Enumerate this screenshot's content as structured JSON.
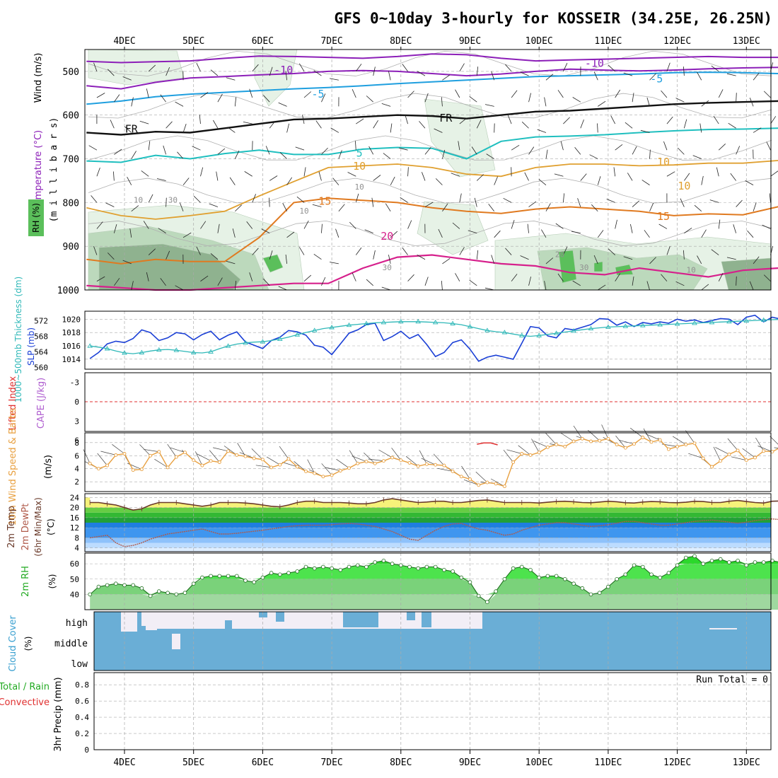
{
  "title": "GFS 0~10day 3-hourly for KOSSEIR (34.25E, 26.25N)",
  "days": [
    "4DEC",
    "5DEC",
    "6DEC",
    "7DEC",
    "8DEC",
    "9DEC",
    "10DEC",
    "11DEC",
    "12DEC",
    "13DEC"
  ],
  "colors": {
    "rh_light": "#e6f2e6",
    "rh_mid": "#bcd9bc",
    "rh_dark": "#8fb28f",
    "rh_bright": "#5bbf5b",
    "t_m10": "#8c1fb8",
    "t_m5": "#1f9fdf",
    "t_fr": "#111111",
    "t_5": "#1fbfbf",
    "t_10": "#e0a030",
    "t_15": "#e07a20",
    "t_20": "#d6208c",
    "slp": "#1a3fd6",
    "thick": "#2fb8b8",
    "li": "#e03030",
    "wind10": "#e8a040",
    "temp_fill": "#f6f27a",
    "dew_fill": "#2a86e6",
    "rh2m_fill": "#44e044",
    "cloud": "#6aaed6",
    "grid": "#aaaaaa"
  },
  "chart_data": [
    {
      "panel": "upper-air",
      "type": "contour",
      "ylabel": "(m i l l i b a r s)",
      "legend_labels": [
        "Wind (m/s)",
        "Temperature (°C)",
        "RH (%)"
      ],
      "y_ticks": [
        500,
        600,
        700,
        800,
        900,
        1000
      ],
      "contour_labels": [
        {
          "text": "-10",
          "x": 2.3,
          "y": 505
        },
        {
          "text": "-10",
          "x": 6.8,
          "y": 490
        },
        {
          "text": "-5",
          "x": 2.8,
          "y": 560
        },
        {
          "text": "-5",
          "x": 7.7,
          "y": 525
        },
        {
          "text": "FR",
          "x": 0.1,
          "y": 640
        },
        {
          "text": "FR",
          "x": 4.65,
          "y": 615
        },
        {
          "text": "5",
          "x": 3.4,
          "y": 695
        },
        {
          "text": "10",
          "x": 3.4,
          "y": 725
        },
        {
          "text": "10",
          "x": 7.8,
          "y": 715
        },
        {
          "text": "15",
          "x": 2.9,
          "y": 805
        },
        {
          "text": "15",
          "x": 7.8,
          "y": 840
        },
        {
          "text": "20",
          "x": 3.8,
          "y": 885
        },
        {
          "text": "10",
          "x": 0.2,
          "y": 800
        },
        {
          "text": "30",
          "x": 0.7,
          "y": 800
        },
        {
          "text": "10",
          "x": 2.6,
          "y": 825
        },
        {
          "text": "10",
          "x": 3.4,
          "y": 770
        },
        {
          "text": "10",
          "x": 8.1,
          "y": 770
        },
        {
          "text": "30",
          "x": 3.8,
          "y": 955
        },
        {
          "text": "30",
          "x": 6.65,
          "y": 955
        },
        {
          "text": "10",
          "x": 8.2,
          "y": 960
        },
        {
          "text": "20",
          "x": 6.3,
          "y": 925
        }
      ]
    },
    {
      "panel": "slp-thickness",
      "type": "line",
      "ylabel": "1000~500mb Thickness (dm)",
      "ylabel2": "SLP (mb)",
      "y_ticks_left": [
        560,
        564,
        568,
        572
      ],
      "y_ticks_right": [
        1014,
        1016,
        1018,
        1020
      ],
      "series": [
        {
          "name": "SLP (mb)",
          "values": [
            1014.1,
            1015.0,
            1016.3,
            1016.7,
            1016.5,
            1017.1,
            1018.4,
            1018.0,
            1016.8,
            1017.2,
            1018.0,
            1017.8,
            1016.9,
            1017.7,
            1018.2,
            1016.9,
            1017.6,
            1018.1,
            1016.6,
            1016.1,
            1015.6,
            1016.8,
            1017.3,
            1018.3,
            1018.1,
            1017.6,
            1016.1,
            1015.8,
            1014.7,
            1016.3,
            1017.9,
            1018.4,
            1019.2,
            1019.4,
            1016.8,
            1017.4,
            1018.2,
            1017.1,
            1017.7,
            1016.2,
            1014.4,
            1015.0,
            1016.5,
            1016.9,
            1015.5,
            1013.7,
            1014.3,
            1014.6,
            1014.3,
            1014.0,
            1016.4,
            1018.9,
            1018.7,
            1017.5,
            1017.2,
            1018.6,
            1018.4,
            1018.8,
            1019.2,
            1020.1,
            1020.0,
            1019.1,
            1019.6,
            1018.9,
            1019.5,
            1019.3,
            1019.6,
            1019.4,
            1020.0,
            1019.7,
            1019.9,
            1019.5,
            1019.8,
            1020.1,
            1020.0,
            1019.2,
            1020.3,
            1020.6,
            1019.6,
            1020.3,
            1020.0,
            1020.9,
            1020.2,
            1018.8,
            1020.5,
            1020.1,
            1018.7,
            1019.0,
            1019.4,
            1019.8,
            1019.3,
            1020.1,
            1020.5,
            1020.0,
            1020.6,
            1020.2,
            1020.8
          ]
        },
        {
          "name": "1000~500mb Thickness (dm)",
          "values": [
            565.5,
            565.2,
            564.8,
            564.2,
            563.7,
            563.5,
            563.8,
            564.2,
            564.5,
            564.6,
            564.4,
            564.1,
            563.8,
            563.7,
            564.0,
            564.8,
            565.5,
            566.0,
            566.3,
            566.5,
            566.6,
            566.9,
            567.3,
            567.8,
            568.4,
            569.0,
            569.5,
            570.0,
            570.3,
            570.6,
            570.9,
            571.1,
            571.3,
            571.5,
            571.6,
            571.7,
            571.8,
            571.8,
            571.8,
            571.7,
            571.6,
            571.5,
            571.3,
            571.0,
            570.5,
            570.0,
            569.5,
            569.2,
            569.0,
            568.6,
            568.2,
            568.0,
            568.2,
            568.5,
            568.8,
            569.1,
            569.4,
            569.7,
            570.0,
            570.2,
            570.4,
            570.5,
            570.6,
            570.7,
            570.8,
            570.9,
            571.0,
            571.1,
            571.2,
            571.3,
            571.4,
            571.5,
            571.6,
            571.7,
            571.8,
            571.9,
            572.0,
            572.1,
            572.2,
            572.3,
            572.4,
            572.5,
            572.6,
            572.7,
            572.8,
            572.9,
            573.0,
            573.1,
            573.2,
            573.3,
            573.4,
            573.5,
            573.6,
            573.7,
            573.8,
            573.9,
            574.0
          ]
        }
      ]
    },
    {
      "panel": "stability",
      "type": "line",
      "ylabel": "Lifted Index",
      "ylabel2": "CAPE (J/kg)",
      "y_ticks": [
        -3,
        0,
        3,
        6
      ],
      "tick_labels": [
        "-3",
        "0",
        "3",
        "6"
      ],
      "series": [
        {
          "name": "Lifted Index",
          "x": [
            5.1,
            5.2,
            5.3,
            5.4
          ],
          "values": [
            6.6,
            6.4,
            6.4,
            6.7
          ]
        }
      ]
    },
    {
      "panel": "wind10m",
      "type": "line",
      "ylabel": "10m Wind Speed & Barbs",
      "unit": "(m/s)",
      "y_ticks": [
        2,
        4,
        6,
        8
      ],
      "series": [
        {
          "name": "10m Wind Speed",
          "values": [
            4.8,
            4.0,
            4.5,
            6.1,
            6.3,
            3.8,
            3.9,
            6.0,
            6.6,
            4.2,
            5.8,
            6.5,
            5.3,
            4.5,
            5.2,
            5.0,
            6.7,
            6.1,
            5.9,
            5.6,
            5.4,
            4.2,
            4.6,
            5.5,
            4.3,
            3.6,
            3.3,
            2.8,
            3.0,
            3.7,
            4.1,
            4.8,
            5.1,
            4.8,
            5.2,
            5.7,
            5.3,
            4.9,
            4.4,
            4.7,
            4.6,
            4.5,
            3.6,
            2.8,
            2.4,
            1.5,
            1.9,
            1.7,
            1.3,
            5.0,
            6.3,
            6.1,
            6.5,
            7.3,
            7.7,
            7.4,
            8.2,
            8.6,
            8.2,
            8.3,
            8.6,
            7.7,
            7.2,
            7.8,
            8.8,
            8.1,
            8.4,
            7.0,
            7.4,
            7.7,
            7.9,
            5.6,
            4.3,
            5.2,
            6.2,
            6.8,
            5.3,
            5.7,
            6.7,
            6.6,
            7.3,
            6.9,
            5.6,
            6.4,
            6.5,
            5.1,
            4.3,
            5.3,
            6.3,
            7.1,
            6.7,
            6.5
          ]
        }
      ]
    },
    {
      "panel": "temp2m",
      "type": "area",
      "ylabel": "2m Temp",
      "ylabel2": "2m DewPt",
      "ylabel3": "(6hr Min/Max)",
      "unit": "(°C)",
      "y_ticks": [
        4,
        8,
        12,
        16,
        20,
        24
      ],
      "tick_labels": [
        "4",
        "8",
        "12",
        "16",
        "20",
        "24"
      ],
      "series": [
        {
          "name": "2m Temp",
          "values": [
            22,
            22,
            21.5,
            21,
            20,
            19,
            19.5,
            21,
            22,
            22,
            22,
            21.5,
            21,
            20.5,
            21,
            22,
            22,
            22,
            21.8,
            21.5,
            21,
            20.5,
            20.3,
            21,
            22,
            22.5,
            22.5,
            22,
            22,
            22,
            21.8,
            21.5,
            21.5,
            22,
            23,
            23.5,
            23,
            22.5,
            22,
            22.2,
            22.5,
            22.5,
            22,
            22,
            22.4,
            22.8,
            23,
            22.5,
            22,
            22,
            22,
            22,
            21.8,
            22.1,
            22.4,
            22.5,
            22.3,
            22,
            21.9,
            22.2,
            22.5,
            22.3,
            21.9,
            21.8,
            22.2,
            22.4,
            22.3,
            22,
            21.9,
            22.1,
            22.5,
            22.4,
            22,
            22,
            22.5,
            22.8,
            22.4,
            22,
            21.8,
            22.5,
            22.6,
            22.2,
            21.8,
            22,
            22.4,
            22.6,
            22.2,
            22,
            22.2,
            22.4,
            22
          ]
        },
        {
          "name": "2m DewPt",
          "values": [
            8,
            8.5,
            9,
            6,
            4.5,
            5,
            6,
            7.5,
            8.5,
            9.5,
            10,
            10.5,
            11,
            11.5,
            10.5,
            9.5,
            9.5,
            9.8,
            10.2,
            10.6,
            11,
            11.5,
            12,
            12.5,
            12.8,
            13,
            13,
            13,
            13.2,
            13.5,
            13.7,
            13.5,
            13,
            12.5,
            11.5,
            10.5,
            9,
            7.5,
            7,
            9,
            11,
            12.5,
            13.5,
            13.7,
            12.5,
            11.5,
            11,
            10,
            9,
            9.5,
            11,
            12,
            13,
            13.5,
            14,
            14,
            13.5,
            13,
            12.5,
            12.8,
            13.2,
            13.8,
            14.5,
            14.5,
            14,
            13.5,
            13,
            13,
            13.5,
            14,
            14.5,
            14.8,
            15,
            14.7,
            14.2,
            13.8,
            14.2,
            14.8,
            15.2,
            15.5,
            15.2,
            14.7,
            14,
            13.5,
            13.8,
            14.2,
            14.4,
            14.3,
            14,
            13.5,
            12,
            13.5
          ]
        }
      ]
    },
    {
      "panel": "rh2m",
      "type": "area",
      "ylabel": "2m RH",
      "unit": "(%)",
      "y_ticks": [
        40,
        50,
        60
      ],
      "series": [
        {
          "name": "2m RH",
          "values": [
            40,
            45,
            46,
            47,
            46,
            46,
            44,
            39,
            42,
            41,
            40,
            41,
            47,
            51,
            52,
            52,
            52,
            52,
            49,
            48,
            51,
            54,
            53,
            54,
            55,
            58,
            57,
            58,
            57,
            56,
            58,
            59,
            58,
            61,
            62,
            60,
            59,
            58,
            57,
            58,
            58,
            56,
            55,
            51,
            48,
            39,
            35,
            42,
            50,
            57,
            58,
            56,
            51,
            52,
            52,
            50,
            47,
            44,
            40,
            41,
            45,
            50,
            53,
            59,
            58,
            53,
            51,
            54,
            59,
            64,
            65,
            60,
            62,
            63,
            61,
            62,
            59,
            61,
            61,
            62,
            61,
            62,
            60,
            59,
            58,
            56,
            56,
            55,
            61,
            62,
            62,
            61,
            62,
            59,
            53,
            60,
            61
          ]
        }
      ]
    },
    {
      "panel": "cloud",
      "type": "area",
      "ylabel": "Cloud Cover",
      "unit": "(%)",
      "tick_labels": [
        "high",
        "middle",
        "low"
      ]
    },
    {
      "panel": "precip",
      "type": "bar",
      "ylabel": "3hr Precip (mm)",
      "legend_labels": [
        "Total / Rain",
        "Convective"
      ],
      "y_ticks": [
        0,
        0.2,
        0.4,
        0.6,
        0.8
      ],
      "tick_labels": [
        "0",
        "0.2",
        "0.4",
        "0.6",
        "0.8"
      ],
      "run_total": "Run Total = 0",
      "values": []
    }
  ]
}
